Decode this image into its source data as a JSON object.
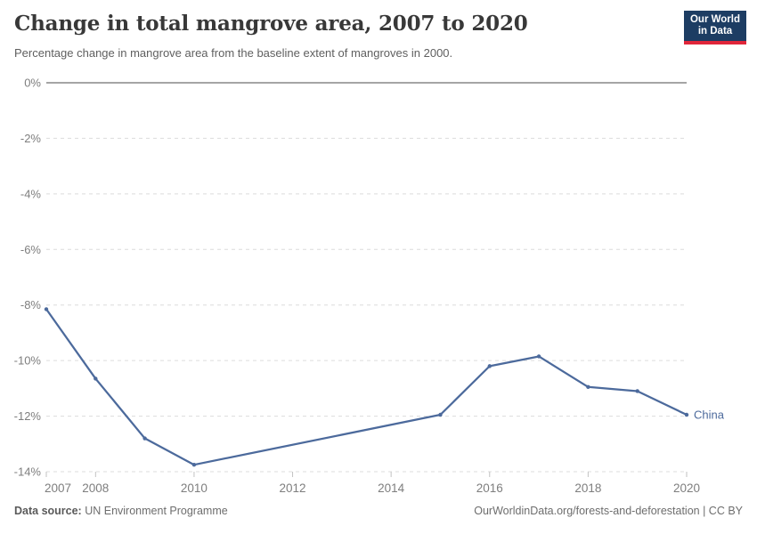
{
  "chart_data": {
    "type": "line",
    "title": "Change in total mangrove area, 2007 to 2020",
    "subtitle": "Percentage change in mangrove area from the baseline extent of mangroves in 2000.",
    "x": [
      2007,
      2008,
      2009,
      2010,
      2015,
      2016,
      2017,
      2018,
      2019,
      2020
    ],
    "series": [
      {
        "name": "China",
        "values": [
          -8.15,
          -10.65,
          -12.8,
          -13.75,
          -11.95,
          -10.2,
          -9.85,
          -10.95,
          -11.1,
          -11.95
        ]
      }
    ],
    "xlim": [
      2007,
      2020
    ],
    "ylim": [
      -14,
      0
    ],
    "xticks": [
      2007,
      2008,
      2010,
      2012,
      2014,
      2016,
      2018,
      2020
    ],
    "yticks": [
      0,
      -2,
      -4,
      -6,
      -8,
      -10,
      -12,
      -14
    ],
    "ytick_suffix": "%",
    "xlabel": "",
    "ylabel": "",
    "grid": true,
    "legend_position": "line-end"
  },
  "colors": {
    "line": "#4c6a9c",
    "entity_label": "#4c6a9c",
    "grid": "#dcdcdc",
    "zero_line": "#a5a5a5",
    "tick_mark": "#c2c2c2",
    "tick_label": "#7e7e7e",
    "title": "#383838",
    "subtitle": "#5f5f5f",
    "logo_bg": "#1d3d63",
    "logo_bar": "#e0263a"
  },
  "logo": {
    "line1": "Our World",
    "line2": "in Data"
  },
  "footer": {
    "source_label": "Data source:",
    "source_value": "UN Environment Programme",
    "attribution": "OurWorldinData.org/forests-and-deforestation | CC BY"
  }
}
